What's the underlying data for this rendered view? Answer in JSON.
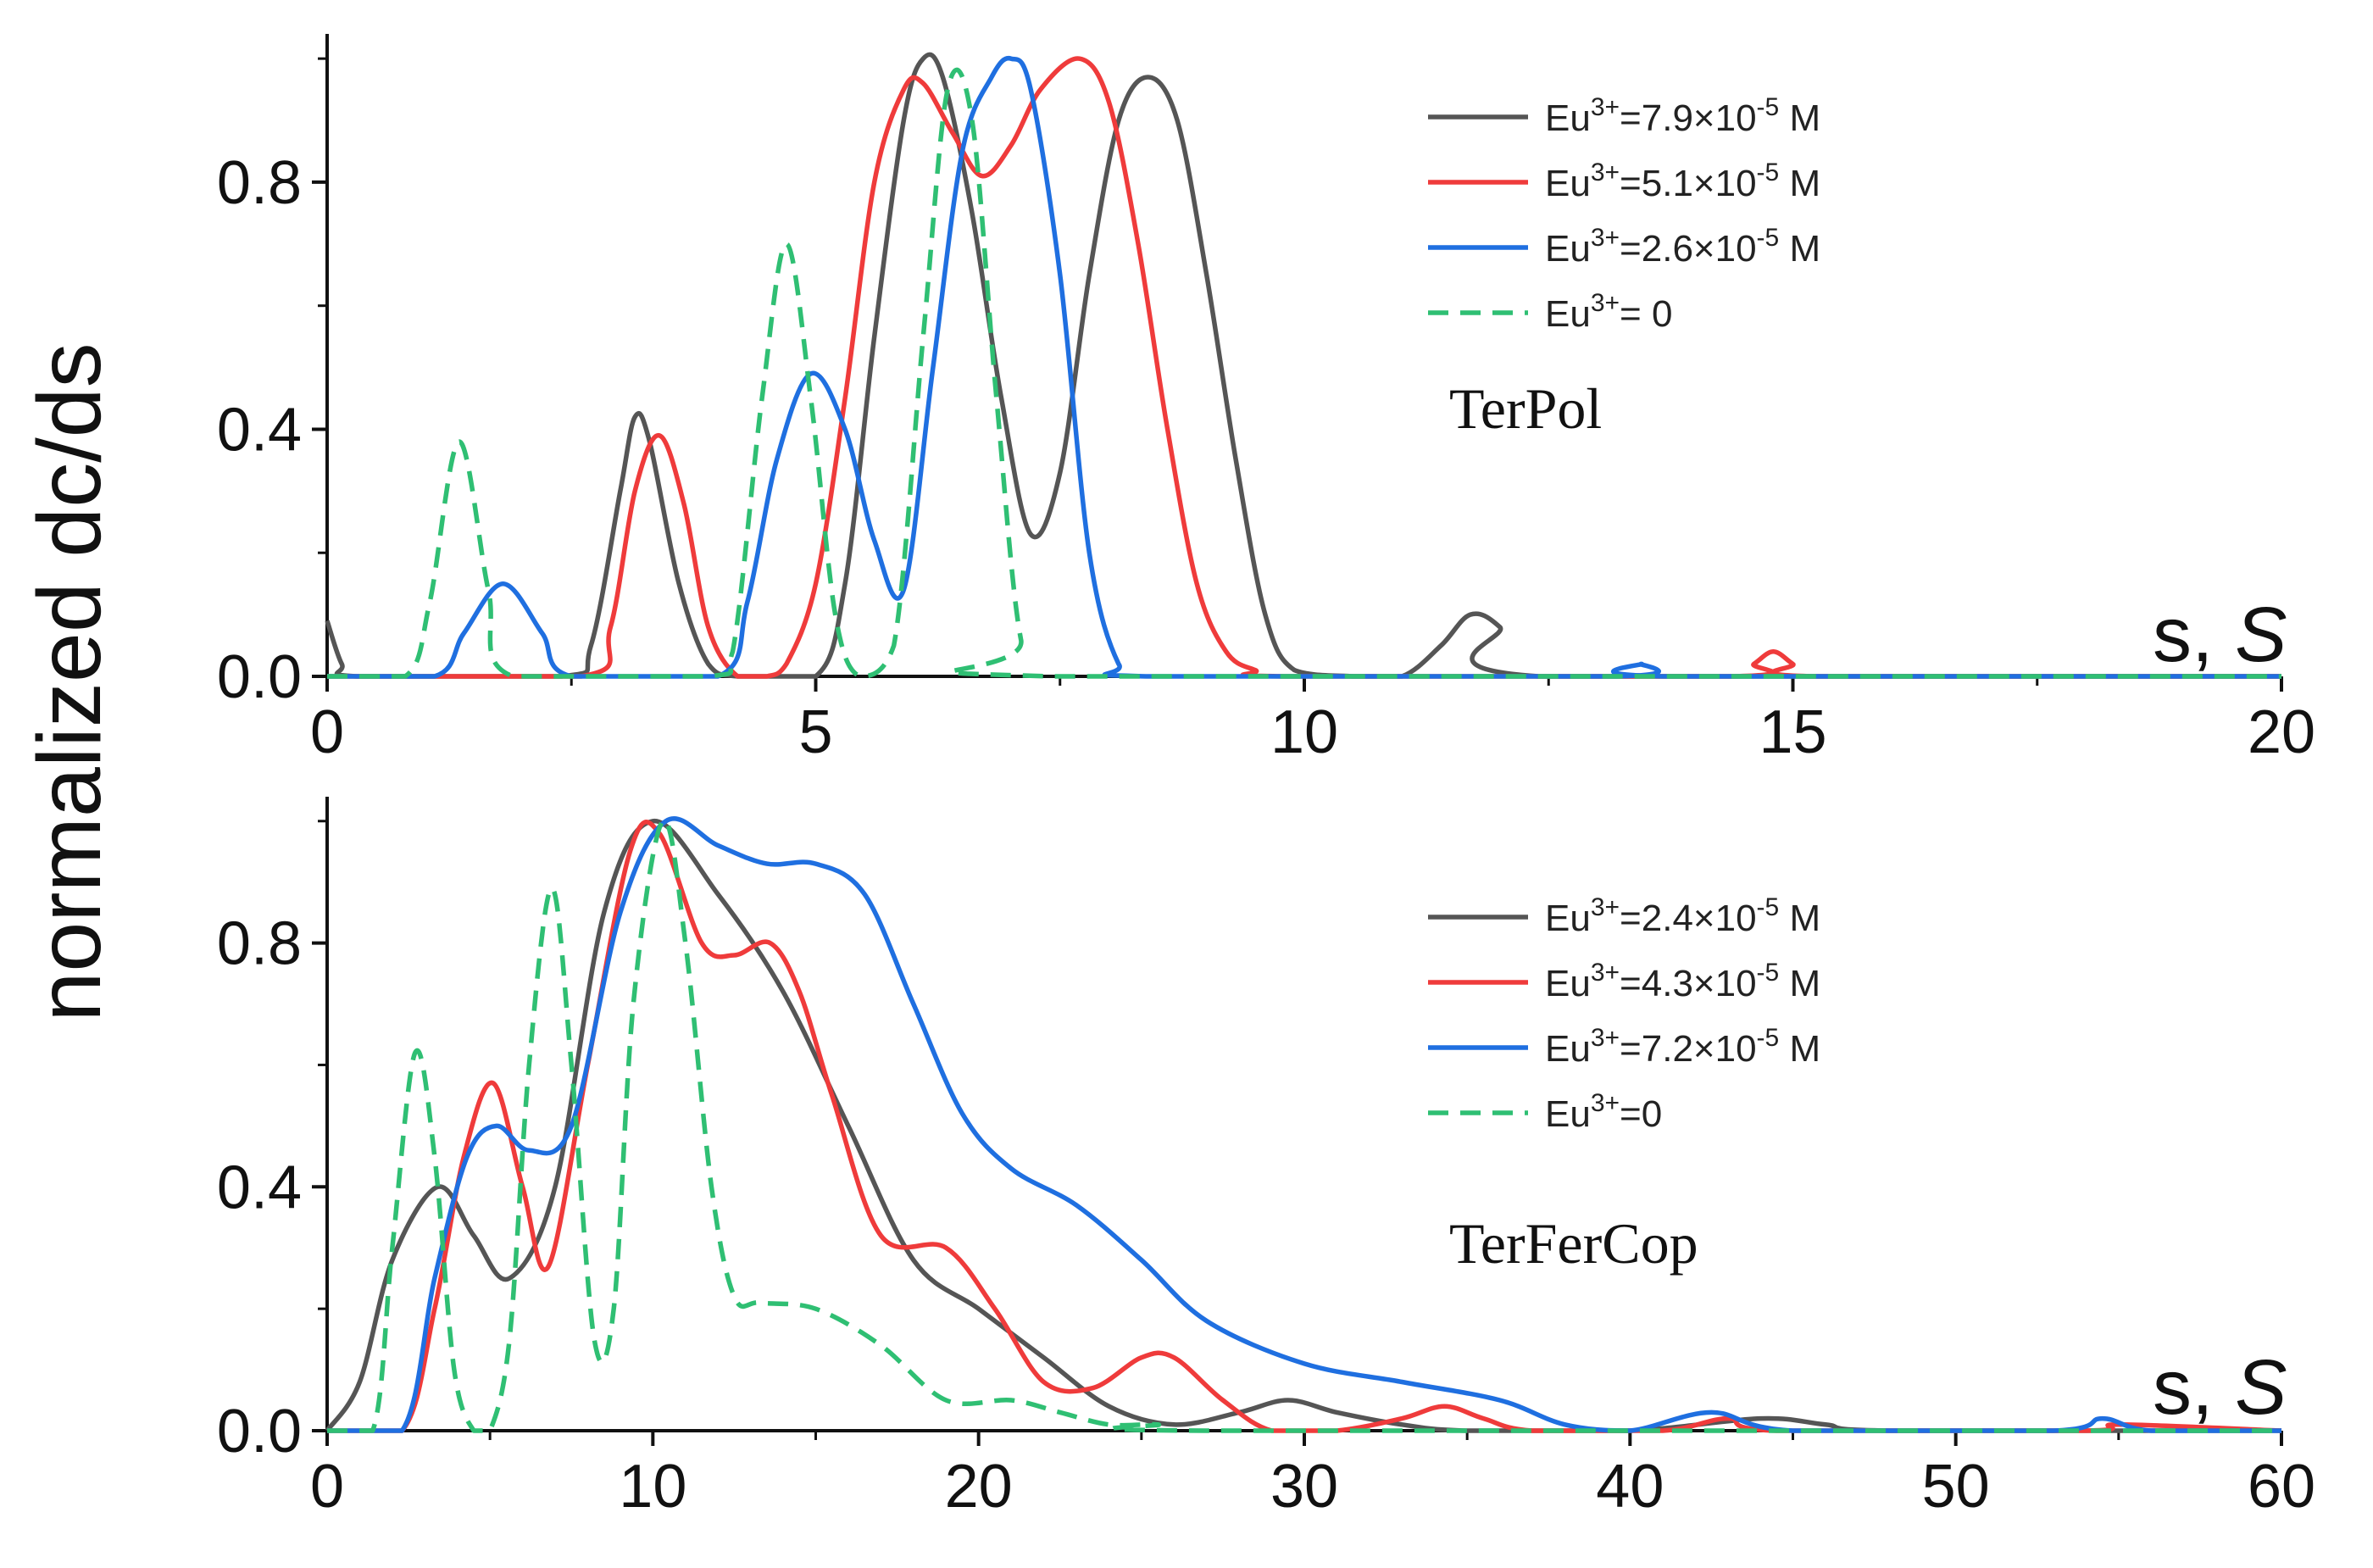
{
  "ylabel": "normalized dc/ds",
  "colors": {
    "black": "#555555",
    "red": "#ef3b3b",
    "blue": "#1f6fe0",
    "green": "#2fbf73"
  },
  "chart_data": [
    {
      "type": "line",
      "title": "",
      "xlabel": "s, S",
      "ylabel": "normalized dc/ds",
      "xlim": [
        0,
        20
      ],
      "ylim": [
        0,
        1.04
      ],
      "xticks": [
        "0",
        "5",
        "10",
        "15",
        "20"
      ],
      "yticks": [
        "0.0",
        "0.4",
        "0.8"
      ],
      "annotation": "TerPol",
      "series": [
        {
          "name": "Eu3+=7.9×10-5 M",
          "legend_base": "Eu",
          "legend_sup1": "3+",
          "legend_mid": "=7.9×10",
          "legend_sup2": "-5",
          "legend_end": " M",
          "color": "#555555",
          "dash": false,
          "x": [
            0,
            0.15,
            0.3,
            2.4,
            2.7,
            3.0,
            3.15,
            3.3,
            3.6,
            3.9,
            4.2,
            5.0,
            5.3,
            5.6,
            5.9,
            6.1,
            6.3,
            6.6,
            6.9,
            7.2,
            7.5,
            7.8,
            8.1,
            8.4,
            8.7,
            9.0,
            9.3,
            9.6,
            9.9,
            10.5,
            11.0,
            11.4,
            11.7,
            12.0,
            12.4,
            20
          ],
          "y": [
            0.09,
            0.02,
            0,
            0,
            0.05,
            0.3,
            0.42,
            0.38,
            0.15,
            0.02,
            0,
            0,
            0.15,
            0.55,
            0.9,
            1.0,
            0.97,
            0.75,
            0.45,
            0.23,
            0.33,
            0.65,
            0.9,
            0.97,
            0.9,
            0.65,
            0.35,
            0.1,
            0.01,
            0,
            0,
            0.05,
            0.1,
            0.08,
            0,
            0
          ]
        },
        {
          "name": "Eu3+=5.1×10-5 M",
          "legend_base": "Eu",
          "legend_sup1": "3+",
          "legend_mid": "=5.1×10",
          "legend_sup2": "-5",
          "legend_end": " M",
          "color": "#ef3b3b",
          "dash": false,
          "x": [
            0,
            2.6,
            2.9,
            3.15,
            3.4,
            3.65,
            3.9,
            4.2,
            4.5,
            4.7,
            5.0,
            5.3,
            5.6,
            5.9,
            6.1,
            6.4,
            6.7,
            7.0,
            7.3,
            7.7,
            8.0,
            8.3,
            8.6,
            8.9,
            9.2,
            9.5,
            9.8,
            14.4,
            14.6,
            14.8,
            15.0,
            15.2,
            20
          ],
          "y": [
            0,
            0,
            0.08,
            0.3,
            0.39,
            0.28,
            0.08,
            0,
            0,
            0.02,
            0.15,
            0.45,
            0.8,
            0.95,
            0.96,
            0.88,
            0.81,
            0.86,
            0.95,
            1.0,
            0.93,
            0.7,
            0.4,
            0.15,
            0.04,
            0.01,
            0,
            0,
            0.02,
            0.04,
            0.02,
            0,
            0
          ]
        },
        {
          "name": "Eu3+=2.6×10-5 M",
          "legend_base": "Eu",
          "legend_sup1": "3+",
          "legend_mid": "=2.6×10",
          "legend_sup2": "-5",
          "legend_end": " M",
          "color": "#1f6fe0",
          "dash": false,
          "x": [
            0,
            1.1,
            1.4,
            1.8,
            2.2,
            2.5,
            4.0,
            4.3,
            4.6,
            4.95,
            5.3,
            5.6,
            5.9,
            6.2,
            6.5,
            6.8,
            7.0,
            7.2,
            7.5,
            7.8,
            8.1,
            8.4,
            13.2,
            13.45,
            13.7,
            20
          ],
          "y": [
            0,
            0,
            0.07,
            0.15,
            0.07,
            0,
            0,
            0.12,
            0.35,
            0.49,
            0.4,
            0.22,
            0.14,
            0.5,
            0.85,
            0.97,
            1.0,
            0.95,
            0.65,
            0.2,
            0.02,
            0,
            0,
            0.02,
            0,
            0
          ]
        },
        {
          "name": "Eu3+= 0",
          "legend_base": "Eu",
          "legend_sup1": "3+",
          "legend_mid": "= 0",
          "legend_sup2": "",
          "legend_end": "",
          "color": "#2fbf73",
          "dash": true,
          "x": [
            0,
            0.8,
            1.05,
            1.35,
            1.65,
            1.9,
            3.9,
            4.15,
            4.45,
            4.7,
            4.95,
            5.2,
            5.45,
            5.8,
            6.1,
            6.35,
            6.6,
            6.85,
            7.1,
            7.4,
            20
          ],
          "y": [
            0,
            0,
            0.12,
            0.38,
            0.14,
            0,
            0,
            0.04,
            0.45,
            0.7,
            0.45,
            0.1,
            0,
            0.05,
            0.55,
            0.95,
            0.9,
            0.45,
            0.06,
            0,
            0
          ]
        }
      ]
    },
    {
      "type": "line",
      "title": "",
      "xlabel": "s, S",
      "ylabel": "normalized dc/ds",
      "xlim": [
        0,
        60
      ],
      "ylim": [
        0,
        1.04
      ],
      "xticks": [
        "0",
        "10",
        "20",
        "30",
        "40",
        "50",
        "60"
      ],
      "yticks": [
        "0.0",
        "0.4",
        "0.8"
      ],
      "annotation": "TerFerCop",
      "series": [
        {
          "name": "Eu3+=2.4×10-5 M",
          "legend_base": "Eu",
          "legend_sup1": "3+",
          "legend_mid": "=2.4×10",
          "legend_sup2": "-5",
          "legend_end": " M",
          "color": "#555555",
          "dash": false,
          "x": [
            0,
            1,
            2,
            3.4,
            4.5,
            5.6,
            7,
            8.5,
            10,
            12,
            14,
            16,
            18,
            20,
            22,
            24,
            26,
            28,
            29.5,
            31,
            33,
            35,
            40,
            44,
            46,
            48,
            60
          ],
          "y": [
            0,
            0.08,
            0.28,
            0.4,
            0.32,
            0.25,
            0.4,
            0.85,
            1.0,
            0.88,
            0.72,
            0.5,
            0.28,
            0.2,
            0.12,
            0.04,
            0.01,
            0.03,
            0.05,
            0.03,
            0.01,
            0,
            0,
            0.02,
            0.01,
            0,
            0
          ]
        },
        {
          "name": "Eu3+=4.3×10-5 M",
          "legend_base": "Eu",
          "legend_sup1": "3+",
          "legend_mid": "=4.3×10",
          "legend_sup2": "-5",
          "legend_end": " M",
          "color": "#ef3b3b",
          "dash": false,
          "x": [
            0,
            2.3,
            3.3,
            4.2,
            5.1,
            6,
            6.8,
            8,
            9.3,
            10.2,
            11.5,
            12.5,
            13.6,
            14.5,
            15.5,
            17,
            19,
            20.5,
            22,
            23.5,
            25,
            26,
            27.5,
            29,
            31,
            33,
            34.3,
            35.5,
            37,
            41,
            43,
            44.5,
            54,
            55,
            60
          ],
          "y": [
            0,
            0,
            0.2,
            0.45,
            0.57,
            0.4,
            0.27,
            0.6,
            0.95,
            0.98,
            0.8,
            0.78,
            0.8,
            0.72,
            0.55,
            0.32,
            0.3,
            0.2,
            0.08,
            0.07,
            0.12,
            0.12,
            0.05,
            0,
            0,
            0.02,
            0.04,
            0.02,
            0,
            0,
            0.02,
            0,
            0,
            0.01,
            0
          ]
        },
        {
          "name": "Eu3+=7.2×10-5 M",
          "legend_base": "Eu",
          "legend_sup1": "3+",
          "legend_mid": "=7.2×10",
          "legend_sup2": "-5",
          "legend_end": " M",
          "color": "#1f6fe0",
          "dash": false,
          "x": [
            0,
            2.3,
            3.3,
            4.3,
            5.2,
            6.2,
            7.5,
            9,
            10.4,
            12,
            13.5,
            15,
            16.5,
            18,
            19.5,
            21,
            23,
            25,
            27,
            30,
            33,
            36,
            38,
            40,
            42.5,
            45,
            53,
            54.5,
            56,
            60
          ],
          "y": [
            0,
            0,
            0.25,
            0.45,
            0.5,
            0.46,
            0.5,
            0.85,
            1.0,
            0.96,
            0.93,
            0.93,
            0.88,
            0.7,
            0.52,
            0.43,
            0.37,
            0.28,
            0.18,
            0.11,
            0.08,
            0.05,
            0.01,
            0,
            0.03,
            0,
            0,
            0.02,
            0,
            0
          ]
        },
        {
          "name": "Eu3+=0",
          "legend_base": "Eu",
          "legend_sup1": "3+",
          "legend_mid": "=0",
          "legend_sup2": "",
          "legend_end": "",
          "color": "#2fbf73",
          "dash": true,
          "x": [
            0,
            1.4,
            2,
            2.7,
            3.3,
            3.9,
            4.5,
            5,
            5.6,
            6.2,
            6.9,
            7.5,
            8.2,
            8.8,
            9.4,
            10.3,
            11,
            11.8,
            12.5,
            13.3,
            15,
            17,
            19,
            21,
            22.5,
            24,
            25.5,
            27,
            60
          ],
          "y": [
            0,
            0,
            0.3,
            0.62,
            0.45,
            0.1,
            0,
            0,
            0.15,
            0.6,
            0.89,
            0.6,
            0.15,
            0.2,
            0.7,
            1.0,
            0.8,
            0.4,
            0.22,
            0.21,
            0.2,
            0.14,
            0.05,
            0.05,
            0.03,
            0.01,
            0.01,
            0,
            0
          ]
        }
      ]
    }
  ]
}
